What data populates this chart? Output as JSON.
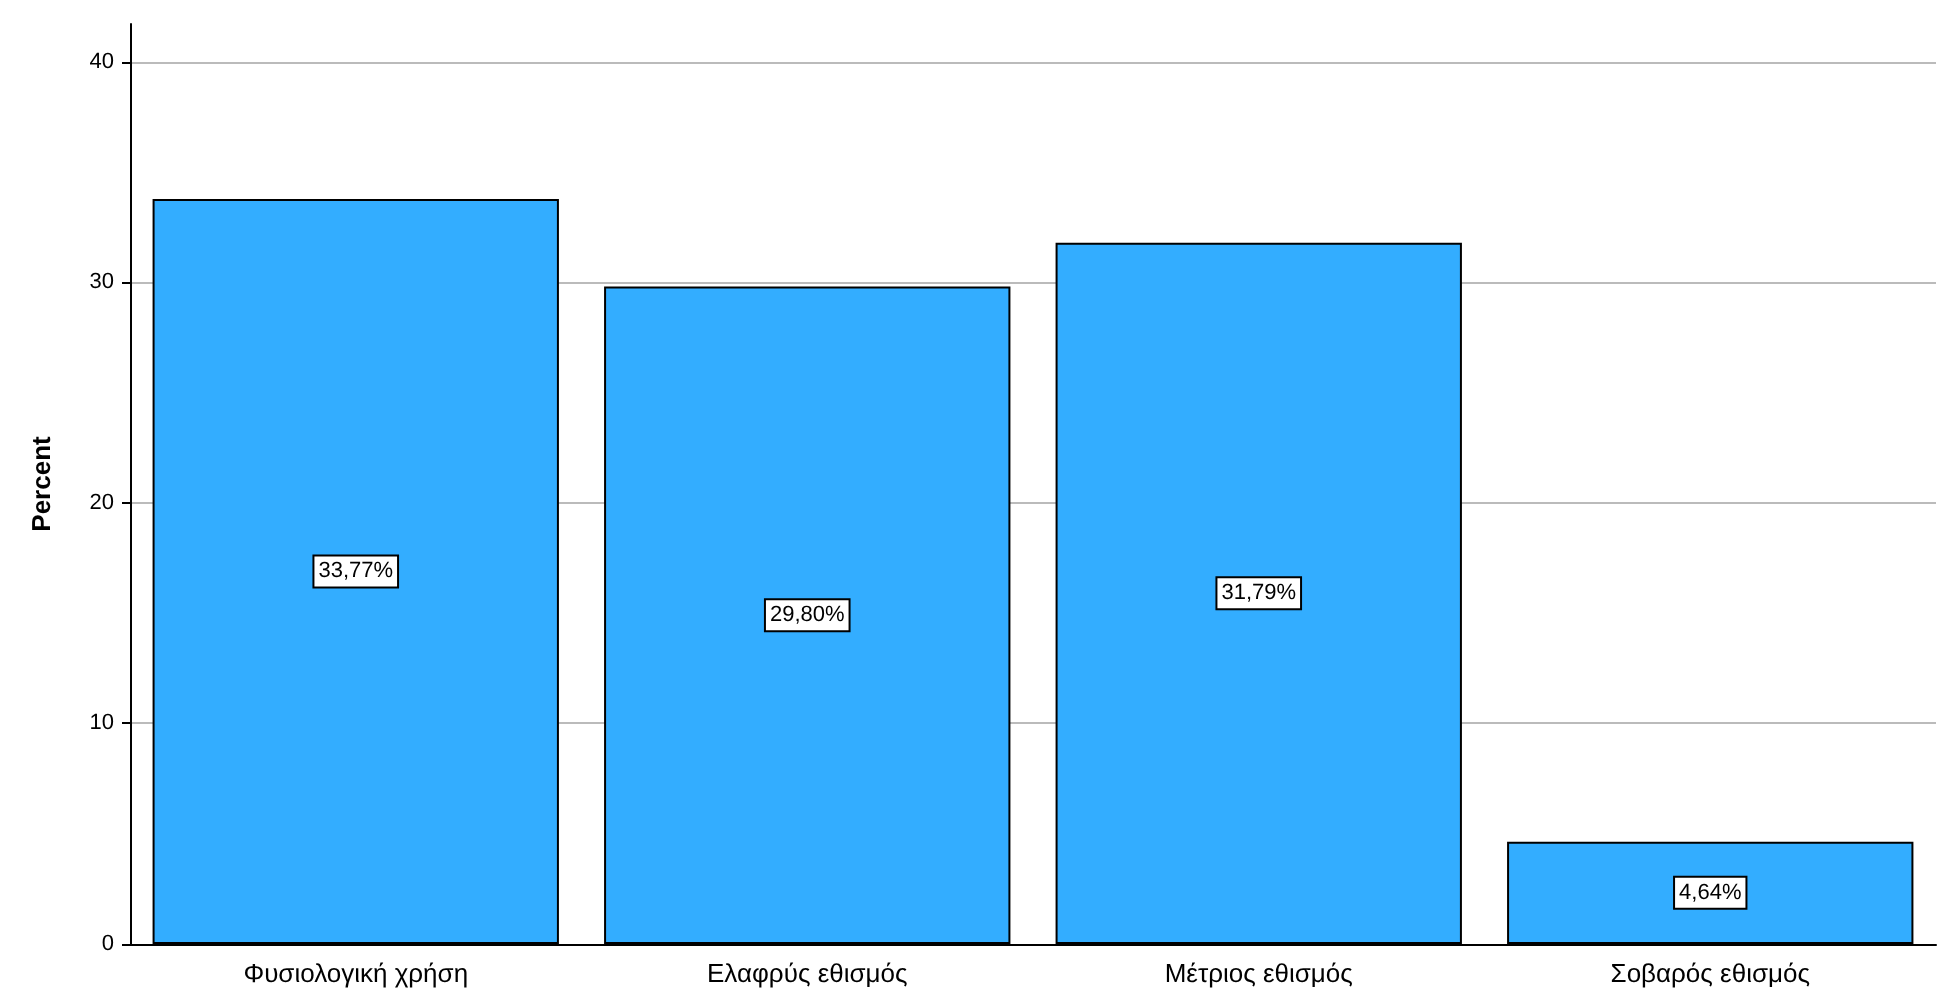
{
  "chart_data": {
    "type": "bar",
    "ylabel": "Percent",
    "categories": [
      "Φυσιολογική χρήση",
      "Ελαφρύς εθισμός",
      "Μέτριος εθισμός",
      "Σοβαρός εθισμός"
    ],
    "values": [
      33.77,
      29.8,
      31.79,
      4.64
    ],
    "value_labels": [
      "33,77%",
      "29,80%",
      "31,79%",
      "4,64%"
    ],
    "color": "#33adff",
    "ylim": [
      0,
      41.7
    ],
    "yticks": [
      0,
      10,
      20,
      30,
      40
    ],
    "grid": "y"
  }
}
